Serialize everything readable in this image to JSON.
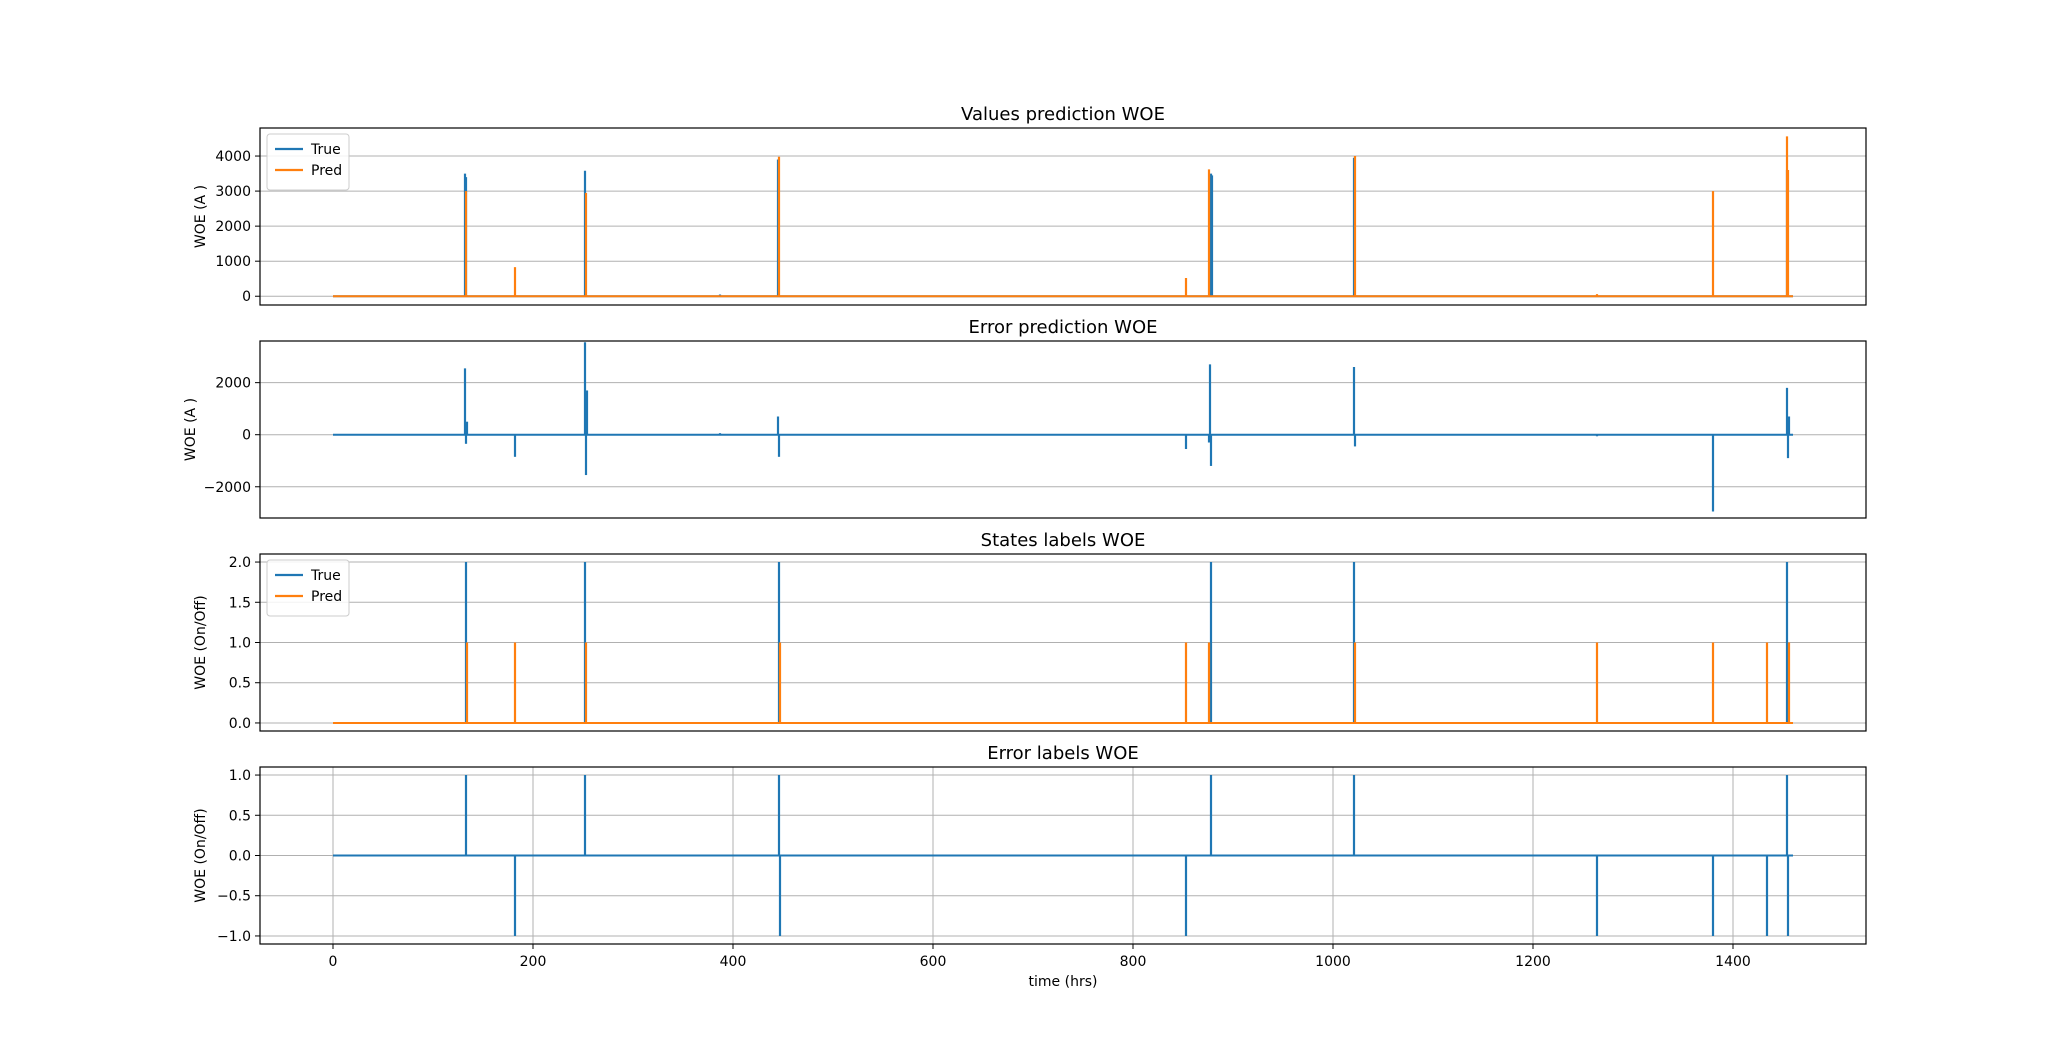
{
  "colors": {
    "true": "#1f77b4",
    "pred": "#ff7f0e"
  },
  "chart_data": [
    {
      "type": "line",
      "title": "Values prediction WOE",
      "ylabel": "WOE (A  )",
      "xlabel": "",
      "xlim": [
        -73,
        1533
      ],
      "ylim": [
        -250,
        4800
      ],
      "yticks": [
        0,
        1000,
        2000,
        3000,
        4000
      ],
      "xticks": [],
      "grid": "y",
      "legend": "upper-left",
      "baseline": 0,
      "series": [
        {
          "name": "True",
          "color": "#1f77b4",
          "spikes": [
            [
              132,
              3500
            ],
            [
              133,
              3400
            ],
            [
              252,
              3580
            ],
            [
              387,
              50
            ],
            [
              445,
              3900
            ],
            [
              878,
              3500
            ],
            [
              879,
              3450
            ],
            [
              1021,
              3950
            ],
            [
              1454,
              3600
            ]
          ]
        },
        {
          "name": "Pred",
          "color": "#ff7f0e",
          "spikes": [
            [
              133,
              3000
            ],
            [
              182,
              830
            ],
            [
              253,
              2950
            ],
            [
              446,
              3980
            ],
            [
              853,
              520
            ],
            [
              876,
              3620
            ],
            [
              1022,
              4000
            ],
            [
              1264,
              60
            ],
            [
              1380,
              3000
            ],
            [
              1454,
              4560
            ],
            [
              1455,
              3600
            ]
          ]
        }
      ]
    },
    {
      "type": "line",
      "title": "Error prediction WOE",
      "ylabel": "WOE (A  )",
      "xlabel": "",
      "xlim": [
        -73,
        1533
      ],
      "ylim": [
        -3200,
        3600
      ],
      "yticks": [
        -2000,
        0,
        2000
      ],
      "xticks": [],
      "grid": "y",
      "baseline": 0,
      "series": [
        {
          "color": "#1f77b4",
          "spikes": [
            [
              132,
              2550
            ],
            [
              133,
              -350
            ],
            [
              134,
              500
            ],
            [
              182,
              -850
            ],
            [
              252,
              3550
            ],
            [
              253,
              -1550
            ],
            [
              254,
              1700
            ],
            [
              387,
              60
            ],
            [
              445,
              700
            ],
            [
              446,
              -850
            ],
            [
              853,
              -550
            ],
            [
              876,
              -300
            ],
            [
              877,
              2700
            ],
            [
              878,
              -1200
            ],
            [
              1021,
              2600
            ],
            [
              1022,
              -450
            ],
            [
              1264,
              -60
            ],
            [
              1380,
              -2950
            ],
            [
              1454,
              1800
            ],
            [
              1455,
              -900
            ],
            [
              1456,
              700
            ]
          ]
        }
      ]
    },
    {
      "type": "line",
      "title": "States labels WOE",
      "ylabel": "WOE (On/Off)",
      "xlabel": "",
      "xlim": [
        -73,
        1533
      ],
      "ylim": [
        -0.1,
        2.1
      ],
      "yticks": [
        0.0,
        0.5,
        1.0,
        1.5,
        2.0
      ],
      "xticks": [],
      "grid": "y",
      "legend": "upper-left",
      "baseline": 0,
      "series": [
        {
          "name": "True",
          "color": "#1f77b4",
          "spikes": [
            [
              133,
              2
            ],
            [
              252,
              2
            ],
            [
              446,
              2
            ],
            [
              878,
              2
            ],
            [
              1021,
              2
            ],
            [
              1454,
              2
            ]
          ]
        },
        {
          "name": "Pred",
          "color": "#ff7f0e",
          "spikes": [
            [
              134,
              1
            ],
            [
              182,
              1
            ],
            [
              253,
              1
            ],
            [
              447,
              1
            ],
            [
              853,
              1
            ],
            [
              876,
              1
            ],
            [
              1022,
              1
            ],
            [
              1264,
              1
            ],
            [
              1380,
              1
            ],
            [
              1434,
              1
            ],
            [
              1456,
              1
            ]
          ]
        }
      ]
    },
    {
      "type": "line",
      "title": "Error labels WOE",
      "ylabel": "WOE (On/Off)",
      "xlabel": "time (hrs)",
      "xlim": [
        -73,
        1533
      ],
      "ylim": [
        -1.1,
        1.1
      ],
      "yticks": [
        -1.0,
        -0.5,
        0.0,
        0.5,
        1.0
      ],
      "xticks": [
        0,
        200,
        400,
        600,
        800,
        1000,
        1200,
        1400
      ],
      "grid": "both",
      "baseline": 0,
      "series": [
        {
          "color": "#1f77b4",
          "spikes": [
            [
              133,
              1
            ],
            [
              182,
              -1
            ],
            [
              252,
              1
            ],
            [
              446,
              1
            ],
            [
              447,
              -1
            ],
            [
              853,
              -1
            ],
            [
              878,
              1
            ],
            [
              1021,
              1
            ],
            [
              1264,
              -1
            ],
            [
              1380,
              -1
            ],
            [
              1434,
              -1
            ],
            [
              1454,
              1
            ],
            [
              1455,
              -1
            ]
          ]
        }
      ]
    }
  ]
}
